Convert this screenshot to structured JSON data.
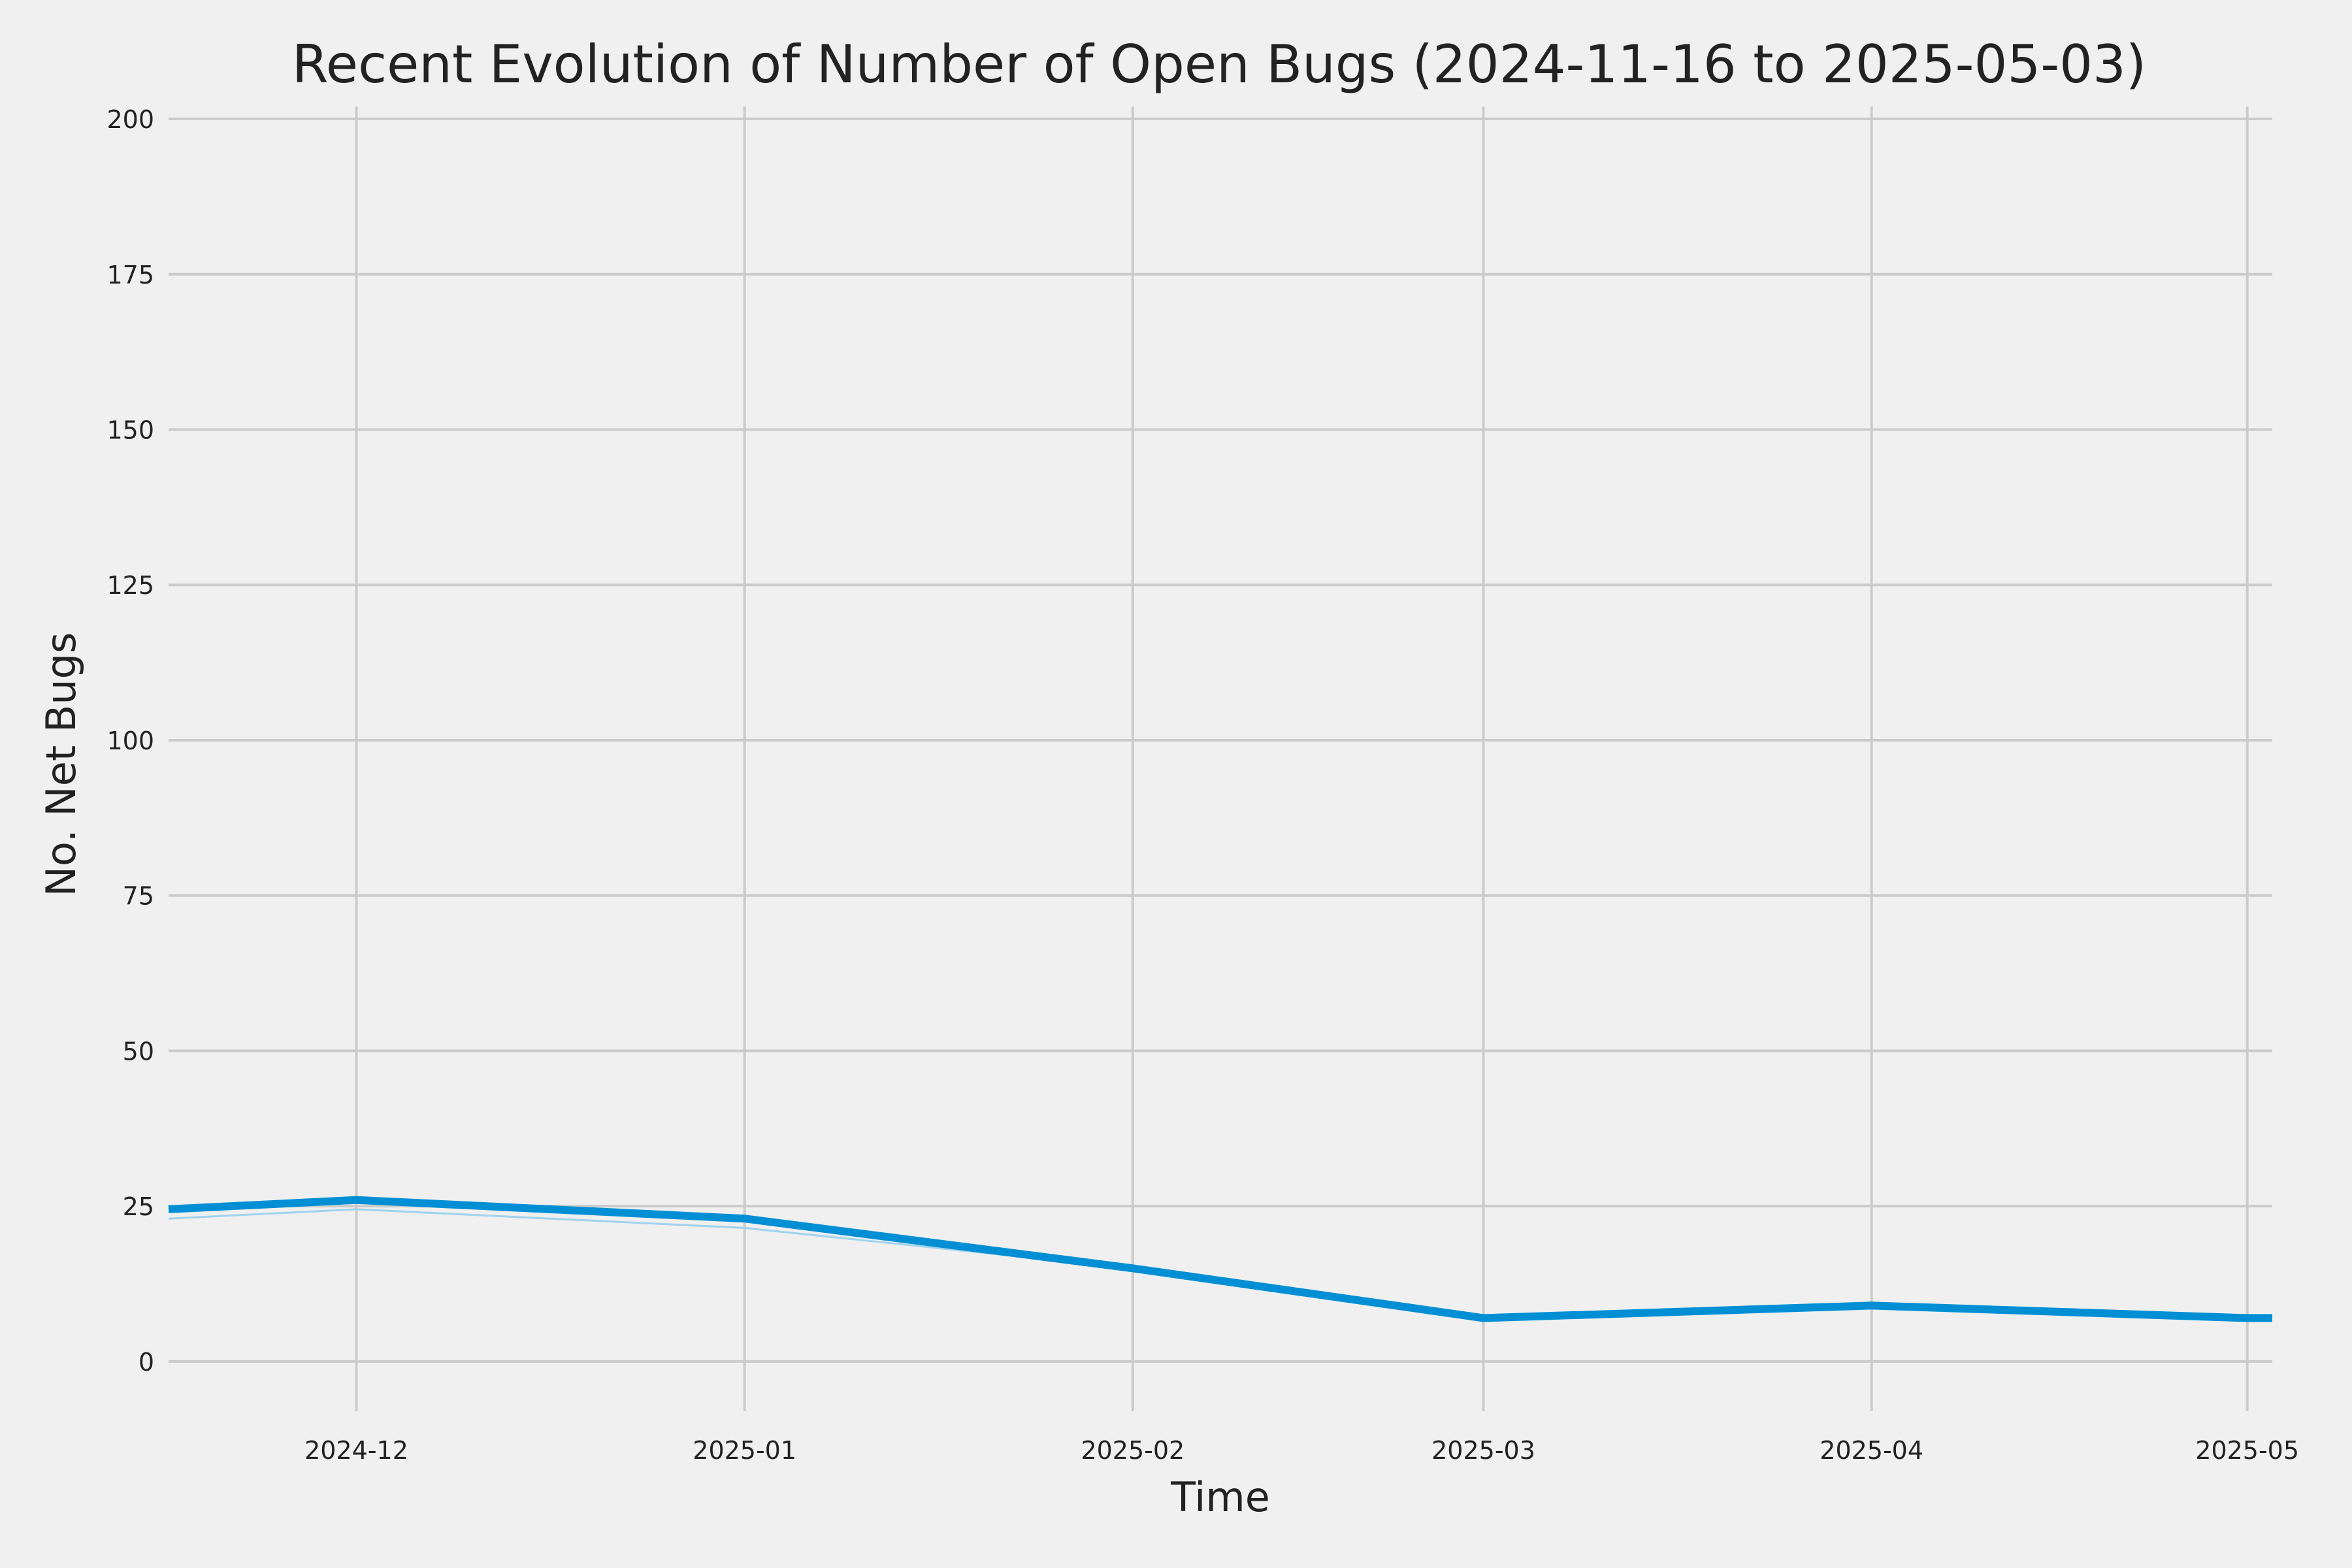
{
  "chart_data": {
    "type": "line",
    "title": "Recent Evolution of Number of Open Bugs (2024-11-16 to 2025-05-03)",
    "xlabel": "Time",
    "ylabel": "No. Net Bugs",
    "xlim": [
      "2024-11-16",
      "2025-05-03"
    ],
    "ylim": [
      -8,
      202
    ],
    "x_ticks": [
      {
        "date": "2024-12-01",
        "label": "2024-12"
      },
      {
        "date": "2025-01-01",
        "label": "2025-01"
      },
      {
        "date": "2025-02-01",
        "label": "2025-02"
      },
      {
        "date": "2025-03-01",
        "label": "2025-03"
      },
      {
        "date": "2025-04-01",
        "label": "2025-04"
      },
      {
        "date": "2025-05-01",
        "label": "2025-05"
      }
    ],
    "y_ticks": [
      0,
      25,
      50,
      75,
      100,
      125,
      150,
      175,
      200
    ],
    "grid": true,
    "x": [
      "2024-11-16",
      "2024-12-01",
      "2025-01-01",
      "2025-02-01",
      "2025-03-01",
      "2025-04-01",
      "2025-05-01",
      "2025-05-03"
    ],
    "series": [
      {
        "values": [
          24.5,
          26,
          23,
          15,
          7,
          9,
          7,
          7
        ],
        "color": "#008fd5"
      },
      {
        "values": [
          23,
          24.5,
          21.5,
          15,
          6.5,
          8.5,
          6.5,
          6.5
        ],
        "color": "#9fd3ee"
      }
    ],
    "colors": {
      "background": "#f0f0f0",
      "grid": "#cbcbcb",
      "text": "#222222"
    }
  }
}
